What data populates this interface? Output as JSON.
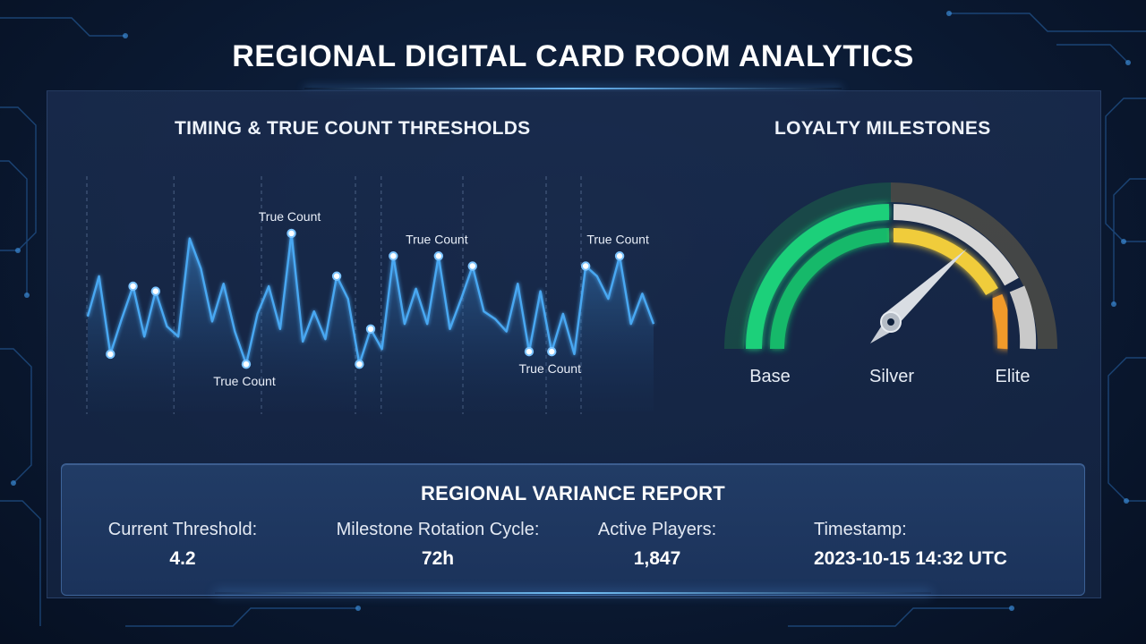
{
  "page": {
    "title": "REGIONAL DIGITAL CARD ROOM ANALYTICS"
  },
  "timing_panel": {
    "title": "TIMING & TRUE COUNT THRESHOLDS",
    "annotation_text": "True Count"
  },
  "loyalty_panel": {
    "title": "LOYALTY MILESTONES",
    "labels": {
      "base": "Base",
      "silver": "Silver",
      "elite": "Elite"
    },
    "colors": {
      "base": "#1ed07a",
      "silver": "#f0cc3a",
      "elite": "#f09a2a",
      "inactive": "#cfcfcf"
    }
  },
  "variance_report": {
    "title": "REGIONAL VARIANCE REPORT",
    "stats": [
      {
        "label": "Current Threshold:",
        "value": "4.2"
      },
      {
        "label": "Milestone Rotation Cycle:",
        "value": "72h"
      },
      {
        "label": "Active Players:",
        "value": "1,847"
      },
      {
        "label": "Timestamp:",
        "value": "2023-10-15 14:32 UTC"
      }
    ]
  },
  "chart_data": {
    "type": "area",
    "title": "TIMING & TRUE COUNT THRESHOLDS",
    "xlabel": "",
    "ylabel": "",
    "grid": "vertical dashed lines",
    "color": "#4aa8f2",
    "series": [
      {
        "values": [
          3.6,
          5.2,
          2.1,
          3.5,
          4.8,
          2.8,
          4.6,
          3.2,
          2.8,
          6.7,
          5.5,
          3.4,
          4.9,
          3.0,
          1.7,
          3.7,
          4.8,
          3.1,
          6.9,
          2.6,
          3.8,
          2.7,
          5.2,
          4.3,
          1.7,
          3.1,
          2.3,
          6.0,
          3.3,
          4.7,
          3.3,
          6.0,
          3.1,
          4.3,
          5.6,
          3.8,
          3.5,
          3.0,
          4.9,
          2.2,
          4.6,
          2.2,
          3.7,
          2.1,
          5.6,
          5.2,
          4.3,
          6.0,
          3.3,
          4.5,
          3.3
        ]
      }
    ],
    "highlight_indices": [
      2,
      4,
      6,
      14,
      18,
      22,
      24,
      25,
      27,
      31,
      34,
      39,
      41,
      44,
      47
    ],
    "annotations": [
      {
        "text": "True Count",
        "index": 18
      },
      {
        "text": "True Count",
        "index": 14
      },
      {
        "text": "True Count",
        "index": 31
      },
      {
        "text": "True Count",
        "index": 47
      },
      {
        "text": "True Count",
        "index": 41
      }
    ]
  }
}
